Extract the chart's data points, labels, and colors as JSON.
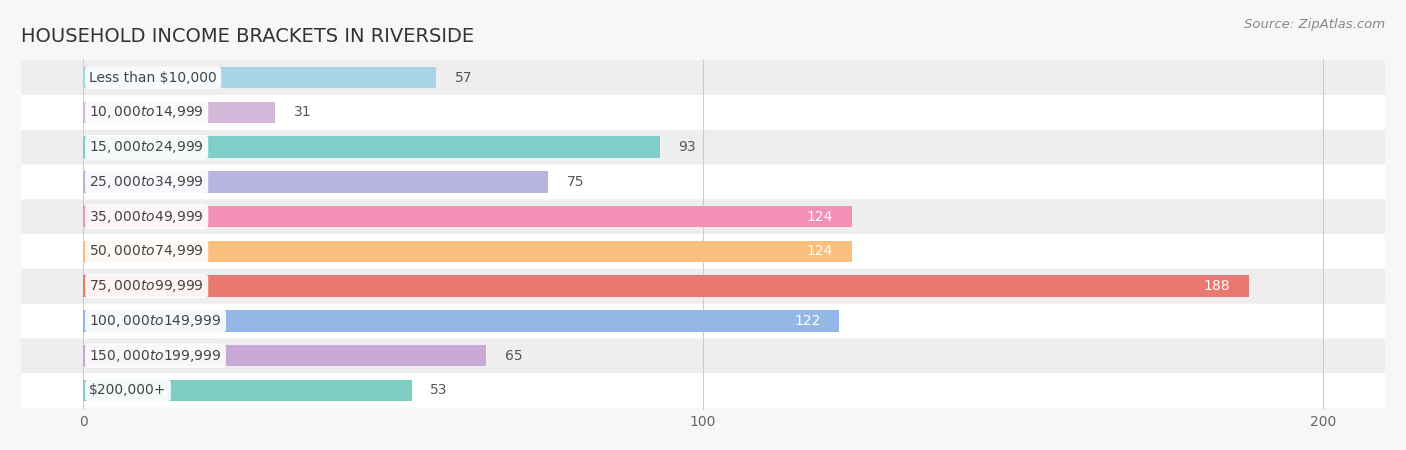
{
  "title": "HOUSEHOLD INCOME BRACKETS IN RIVERSIDE",
  "source": "Source: ZipAtlas.com",
  "categories": [
    "Less than $10,000",
    "$10,000 to $14,999",
    "$15,000 to $24,999",
    "$25,000 to $34,999",
    "$35,000 to $49,999",
    "$50,000 to $74,999",
    "$75,000 to $99,999",
    "$100,000 to $149,999",
    "$150,000 to $199,999",
    "$200,000+"
  ],
  "values": [
    57,
    31,
    93,
    75,
    124,
    124,
    188,
    122,
    65,
    53
  ],
  "bar_colors": [
    "#a8d4e8",
    "#d4b8da",
    "#7ececa",
    "#b8b4e0",
    "#f490b8",
    "#f8c07c",
    "#e87870",
    "#94b8e6",
    "#c8a8d4",
    "#7ecec4"
  ],
  "xlim": [
    -10,
    210
  ],
  "xticks": [
    0,
    100,
    200
  ],
  "background_color": "#f7f7f7",
  "row_bg_light": "#ffffff",
  "row_bg_dark": "#eeeeee",
  "label_color_dark": "#555555",
  "label_color_light": "#ffffff",
  "title_fontsize": 14,
  "source_fontsize": 9.5,
  "bar_label_fontsize": 10,
  "cat_label_fontsize": 10,
  "bar_height": 0.62,
  "threshold_inside": 100
}
